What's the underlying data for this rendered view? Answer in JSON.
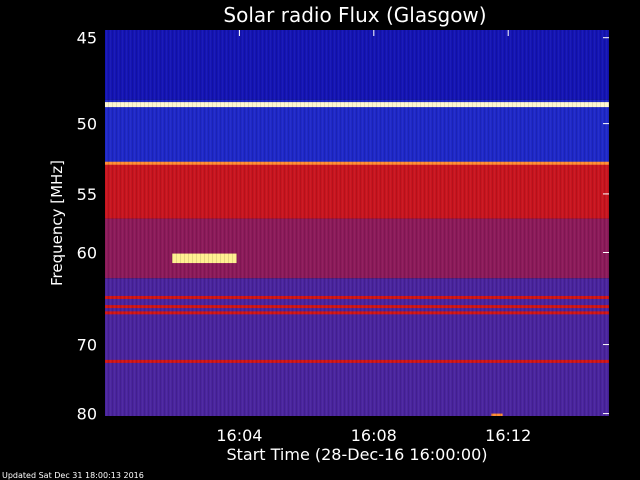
{
  "chart_data": {
    "type": "heatmap",
    "title": "Solar radio Flux (Glasgow)",
    "xlabel": "Start Time (28-Dec-16 16:00:00)",
    "ylabel": "Frequency [MHz]",
    "x_ticks": [
      "16:04",
      "16:08",
      "16:12"
    ],
    "x_range": [
      "16:00:00",
      "16:15:00"
    ],
    "y_ticks": [
      45,
      50,
      55,
      60,
      70,
      80
    ],
    "y_range": [
      44.6,
      80.4
    ],
    "y_scale": "reciprocal",
    "colormap": [
      "#0a0a8a",
      "#2222dd",
      "#4a2a9a",
      "#8a1a6a",
      "#cc1020",
      "#ff3010",
      "#ff9020",
      "#ffffc0"
    ],
    "background_regions": [
      {
        "f_from": 44.6,
        "f_to": 48.5,
        "level": "blue"
      },
      {
        "f_from": 48.5,
        "f_to": 52.7,
        "level": "blue-violet"
      },
      {
        "f_from": 52.7,
        "f_to": 57.0,
        "level": "red"
      },
      {
        "f_from": 57.0,
        "f_to": 62.5,
        "level": "red-violet"
      },
      {
        "f_from": 62.5,
        "f_to": 80.4,
        "level": "violet"
      }
    ],
    "bands": [
      {
        "freq": 48.8,
        "intensity": "white"
      },
      {
        "freq": 52.7,
        "intensity": "orange"
      },
      {
        "freq": 64.5,
        "intensity": "red"
      },
      {
        "freq": 65.5,
        "intensity": "red"
      },
      {
        "freq": 66.2,
        "intensity": "red"
      },
      {
        "freq": 72.2,
        "intensity": "red"
      }
    ],
    "bursts": [
      {
        "start": "16:02:00",
        "end": "16:03:55",
        "f_low": 60.1,
        "f_high": 61.0,
        "intensity": "yellow-white"
      },
      {
        "start": "16:11:30",
        "end": "16:11:50",
        "f_low": 80.0,
        "f_high": 80.4,
        "intensity": "orange"
      }
    ],
    "grid": false
  },
  "footer": "Updated Sat Dec 31 18:00:13 2016"
}
